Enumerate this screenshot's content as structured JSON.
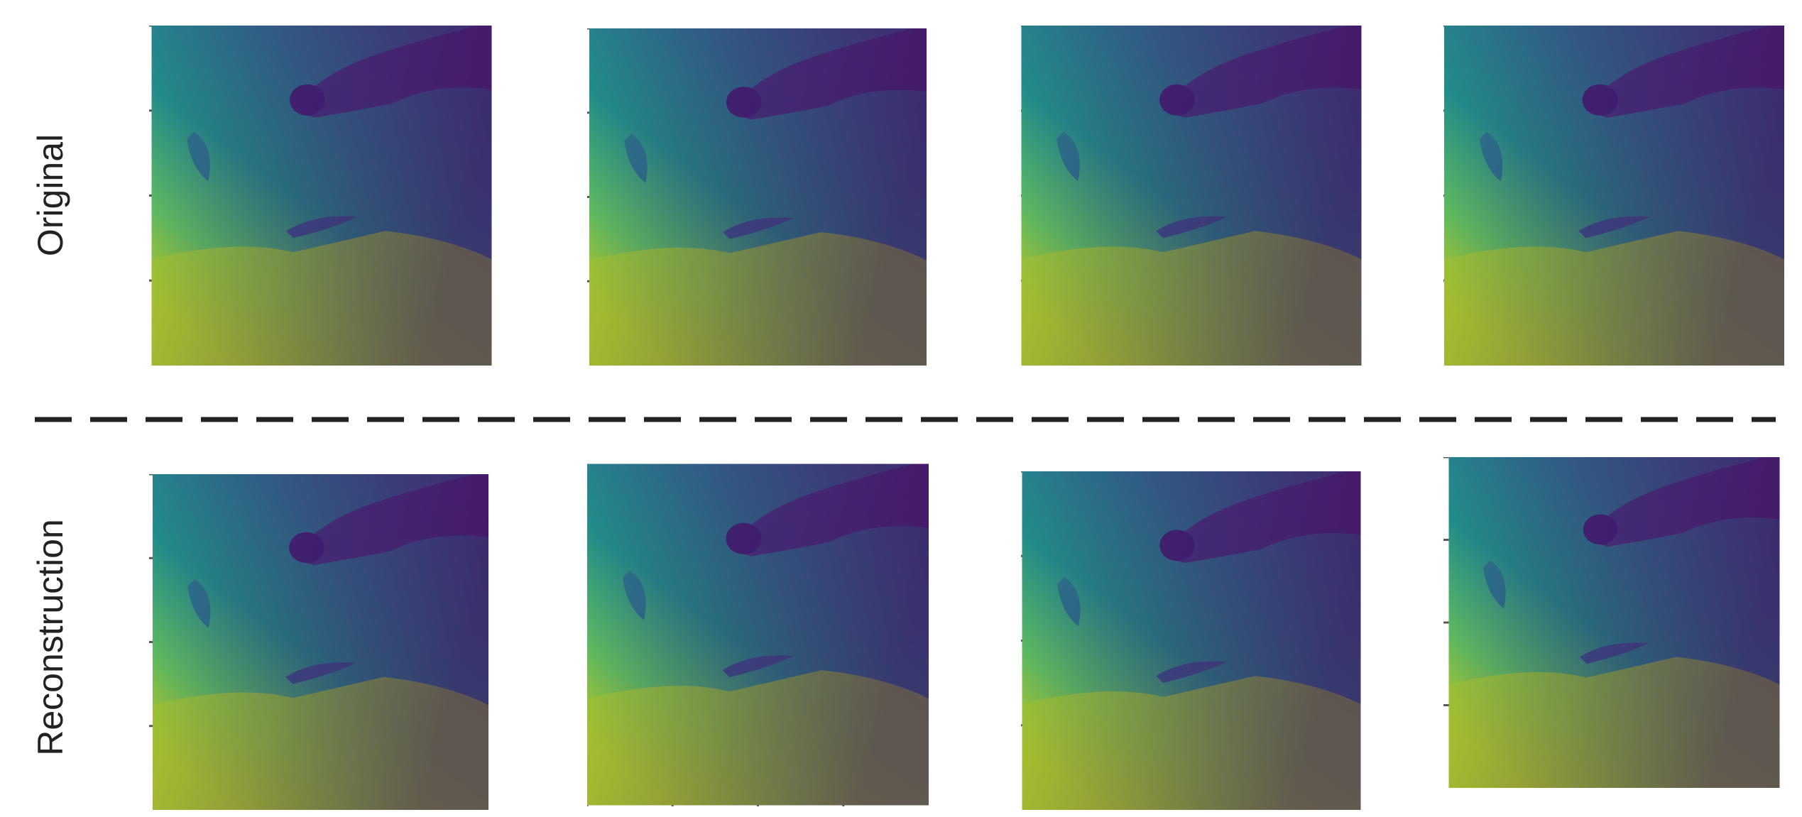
{
  "rows": [
    {
      "label": "Original"
    },
    {
      "label": "Reconstruction"
    }
  ]
}
